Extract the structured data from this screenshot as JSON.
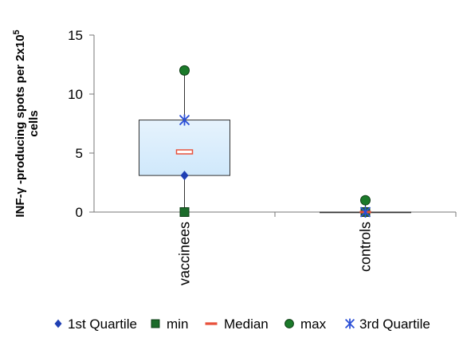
{
  "chart_data": {
    "type": "boxplot",
    "title": "",
    "ylabel_line1": "INF-γ -producing spots per 2x10",
    "ylabel_sup": "5",
    "ylabel_line2": "cells",
    "xlabel": "",
    "ylim": [
      0,
      15
    ],
    "yticks": [
      "0",
      "5",
      "10",
      "15"
    ],
    "categories": [
      "vaccinees",
      "controls"
    ],
    "series": [
      {
        "name": "1st Quartile",
        "marker": "diamond",
        "color": "#1f3fb3",
        "values": [
          3.1,
          0
        ]
      },
      {
        "name": "min",
        "marker": "square",
        "color": "#1b6b2a",
        "values": [
          0,
          0
        ]
      },
      {
        "name": "Median",
        "marker": "dash",
        "color": "#e8523c",
        "values": [
          5.1,
          0
        ]
      },
      {
        "name": "max",
        "marker": "circle",
        "color": "#1b7a2a",
        "values": [
          12,
          1
        ]
      },
      {
        "name": "3rd Quartile",
        "marker": "asterisk",
        "color": "#2b4fd6",
        "values": [
          7.8,
          0
        ]
      }
    ],
    "box_fill": "#cfe8fb",
    "legend_position": "bottom",
    "grid": false
  }
}
